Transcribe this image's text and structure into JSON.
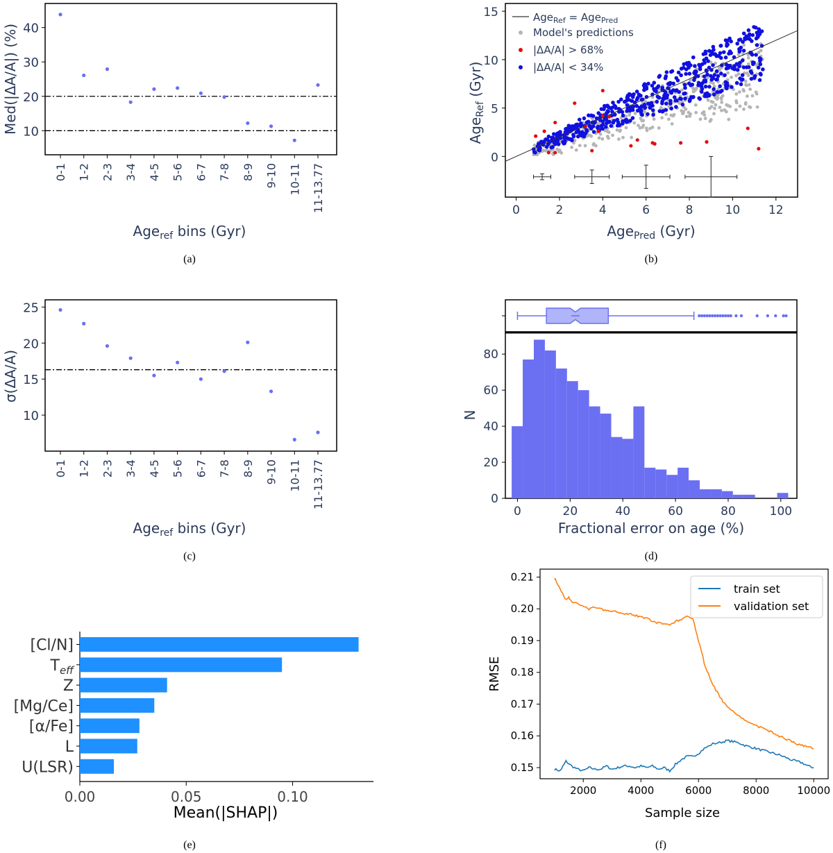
{
  "captions": [
    "(a)",
    "(b)",
    "(c)",
    "(d)",
    "(e)",
    "(f)"
  ],
  "chart_data": [
    {
      "id": "a",
      "type": "scatter",
      "ylabel": "Med(|ΔA/A|) (%)",
      "xlabel_main": "Age",
      "xlabel_sub": "ref",
      "xlabel_tail": " bins (Gyr)",
      "categories": [
        "0-1",
        "1-2",
        "2-3",
        "3-4",
        "4-5",
        "5-6",
        "6-7",
        "7-8",
        "8-9",
        "9-10",
        "10-11",
        "11-13.77"
      ],
      "values": [
        43.8,
        26.1,
        27.9,
        18.3,
        22.1,
        22.4,
        20.9,
        19.8,
        12.2,
        11.3,
        7.2,
        23.3
      ],
      "yticks": [
        10,
        20,
        30,
        40
      ],
      "ylim": [
        3,
        47
      ],
      "hlines": [
        20,
        10
      ],
      "color": "#6b6ff2"
    },
    {
      "id": "b",
      "type": "scatter",
      "xlabel_main": "Age",
      "xlabel_sub": "Pred",
      "xlabel_tail": " (Gyr)",
      "ylabel_main": "Age",
      "ylabel_sub": "Ref",
      "ylabel_tail": " (Gyr)",
      "xlim": [
        -0.5,
        13
      ],
      "ylim": [
        -4.2,
        15.8
      ],
      "xticks": [
        0,
        2,
        4,
        6,
        8,
        10,
        12
      ],
      "yticks": [
        0,
        5,
        10,
        15
      ],
      "legend": [
        {
          "label_main": "Age",
          "label_sub": "Ref",
          "label_mid": " = Age",
          "label_sub2": "Pred",
          "kind": "line",
          "color": "#333333"
        },
        {
          "label": "Model's predictions",
          "kind": "dot",
          "color": "#b5b5b5"
        },
        {
          "label": "|ΔA/A| > 68%",
          "kind": "dot",
          "color": "#e01010"
        },
        {
          "label": "|ΔA/A| < 34%",
          "kind": "dot",
          "color": "#1010e0"
        }
      ],
      "identity_line": {
        "x": [
          -0.5,
          13
        ],
        "y": [
          -0.5,
          13
        ]
      },
      "outliers_red": [
        [
          0.9,
          2.1
        ],
        [
          1.3,
          2.6
        ],
        [
          1.5,
          0.4
        ],
        [
          1.8,
          0.4
        ],
        [
          1.8,
          3.5
        ],
        [
          2.7,
          5.5
        ],
        [
          3.2,
          3.1
        ],
        [
          3.5,
          0.6
        ],
        [
          4.0,
          4.2
        ],
        [
          4.3,
          4.1
        ],
        [
          3.8,
          2.6
        ],
        [
          5.3,
          1.1
        ],
        [
          5.6,
          1.7
        ],
        [
          6.3,
          1.4
        ],
        [
          6.4,
          1.3
        ],
        [
          7.6,
          1.4
        ],
        [
          8.8,
          1.5
        ],
        [
          10.7,
          2.9
        ],
        [
          11.2,
          0.8
        ],
        [
          4.0,
          6.8
        ]
      ],
      "error_bars": [
        {
          "x": 1.2,
          "y": -2.1,
          "xerr": 0.4,
          "yerr": 0.3
        },
        {
          "x": 3.5,
          "y": -2.1,
          "xerr": 0.8,
          "yerr": 0.7
        },
        {
          "x": 6.0,
          "y": -2.1,
          "xerr": 1.1,
          "yerr": 1.2
        },
        {
          "x": 9.0,
          "y": -2.1,
          "xerr": 1.2,
          "yerr": 2.1
        }
      ]
    },
    {
      "id": "c",
      "type": "scatter",
      "ylabel": "σ(ΔA/A)",
      "xlabel_main": "Age",
      "xlabel_sub": "ref",
      "xlabel_tail": " bins (Gyr)",
      "categories": [
        "0-1",
        "1-2",
        "2-3",
        "3-4",
        "4-5",
        "5-6",
        "6-7",
        "7-8",
        "8-9",
        "9-10",
        "10-11",
        "11-13.77"
      ],
      "values": [
        24.6,
        22.7,
        19.6,
        17.9,
        15.5,
        17.3,
        15.0,
        16.1,
        20.1,
        13.3,
        6.6,
        7.6
      ],
      "yticks": [
        10,
        15,
        20,
        25
      ],
      "ylim": [
        5,
        26
      ],
      "hlines": [
        16.3
      ],
      "color": "#6b6ff2"
    },
    {
      "id": "d",
      "type": "bar",
      "xlabel": "Fractional error on age (%)",
      "ylabel": "N",
      "xticks": [
        0,
        20,
        40,
        60,
        80,
        100
      ],
      "yticks": [
        0,
        20,
        40,
        60,
        80
      ],
      "xlim": [
        -4.6,
        106.1
      ],
      "ylim": [
        0,
        92
      ],
      "bin_start": -2.2,
      "bin_width": 4.2,
      "values": [
        40,
        77,
        88,
        82,
        72,
        65,
        60,
        51,
        47,
        34,
        33,
        51,
        17,
        16,
        13,
        17,
        10,
        5,
        5,
        4,
        2,
        2,
        0,
        0,
        3
      ],
      "color": "#6b6ff2",
      "boxplot": {
        "whisker_low": 0,
        "q1": 11,
        "median": 22,
        "q3": 34.5,
        "whisker_high": 67,
        "fliers": [
          69,
          70,
          71,
          72,
          73,
          74,
          75,
          76,
          77,
          78,
          79,
          80,
          81,
          83,
          85,
          91,
          95,
          98,
          101,
          102
        ]
      }
    },
    {
      "id": "e",
      "type": "bar",
      "orientation": "horizontal",
      "xlabel": "Mean(|SHAP|)",
      "categories": [
        "[Cl/N]",
        "Teff",
        "Z",
        "[Mg/Ce]",
        "[α/Fe]",
        "L",
        "U(LSR)"
      ],
      "teff_base": "T",
      "teff_sub": "eff",
      "values": [
        0.131,
        0.095,
        0.041,
        0.035,
        0.028,
        0.027,
        0.016
      ],
      "xticks": [
        0.0,
        0.05,
        0.1
      ],
      "xtick_labels": [
        "0.00",
        "0.05",
        "0.10"
      ],
      "xlim": [
        0,
        0.138
      ],
      "color": "#1e90ff"
    },
    {
      "id": "f",
      "type": "line",
      "xlabel": "Sample size",
      "ylabel": "RMSE",
      "xticks": [
        2000,
        4000,
        6000,
        8000,
        10000
      ],
      "yticks": [
        0.15,
        0.16,
        0.17,
        0.18,
        0.19,
        0.2,
        0.21
      ],
      "ytick_labels": [
        "0.15",
        "0.16",
        "0.17",
        "0.18",
        "0.19",
        "0.20",
        "0.21"
      ],
      "xlim": [
        500,
        10500
      ],
      "ylim": [
        0.1465,
        0.2125
      ],
      "series": [
        {
          "name": "train set",
          "color": "#1f77b4",
          "x": [
            1000,
            1200,
            1300,
            1400,
            1600,
            1800,
            2000,
            2200,
            2400,
            2600,
            2800,
            3000,
            3200,
            3400,
            3600,
            3800,
            4000,
            4200,
            4400,
            4600,
            4800,
            5000,
            5200,
            5400,
            5600,
            5800,
            6000,
            6200,
            6500,
            6800,
            7000,
            7200,
            7400,
            7600,
            7800,
            8000,
            8200,
            8400,
            8600,
            8800,
            9000,
            9200,
            9400,
            9600,
            9800,
            10000
          ],
          "y": [
            0.1495,
            0.149,
            0.1505,
            0.152,
            0.1505,
            0.1495,
            0.149,
            0.15,
            0.1495,
            0.1495,
            0.1505,
            0.1495,
            0.15,
            0.1505,
            0.1505,
            0.15,
            0.1505,
            0.15,
            0.1505,
            0.1495,
            0.15,
            0.149,
            0.151,
            0.1525,
            0.1535,
            0.1535,
            0.1545,
            0.156,
            0.1575,
            0.158,
            0.1585,
            0.1582,
            0.1578,
            0.157,
            0.1565,
            0.156,
            0.1555,
            0.155,
            0.1545,
            0.154,
            0.1533,
            0.1525,
            0.152,
            0.1515,
            0.1505,
            0.15
          ]
        },
        {
          "name": "validation set",
          "color": "#ff7f0e",
          "x": [
            1000,
            1100,
            1200,
            1300,
            1400,
            1500,
            1600,
            1800,
            2000,
            2200,
            2400,
            2600,
            2800,
            3000,
            3200,
            3400,
            3600,
            3800,
            4000,
            4200,
            4400,
            4600,
            4800,
            5000,
            5200,
            5400,
            5600,
            5800,
            6000,
            6200,
            6400,
            6600,
            6800,
            7000,
            7200,
            7400,
            7600,
            7800,
            8000,
            8200,
            8400,
            8600,
            8800,
            9000,
            9200,
            9400,
            9600,
            9800,
            10000
          ],
          "y": [
            0.2095,
            0.208,
            0.206,
            0.2045,
            0.203,
            0.2035,
            0.2025,
            0.2015,
            0.2005,
            0.2,
            0.2005,
            0.2,
            0.1995,
            0.1995,
            0.199,
            0.1985,
            0.1985,
            0.198,
            0.1975,
            0.197,
            0.196,
            0.1955,
            0.195,
            0.195,
            0.196,
            0.1965,
            0.1975,
            0.197,
            0.19,
            0.183,
            0.178,
            0.1745,
            0.1715,
            0.169,
            0.1675,
            0.1665,
            0.165,
            0.164,
            0.1632,
            0.1625,
            0.1618,
            0.161,
            0.16,
            0.159,
            0.1585,
            0.1575,
            0.157,
            0.1565,
            0.156
          ]
        }
      ]
    }
  ]
}
